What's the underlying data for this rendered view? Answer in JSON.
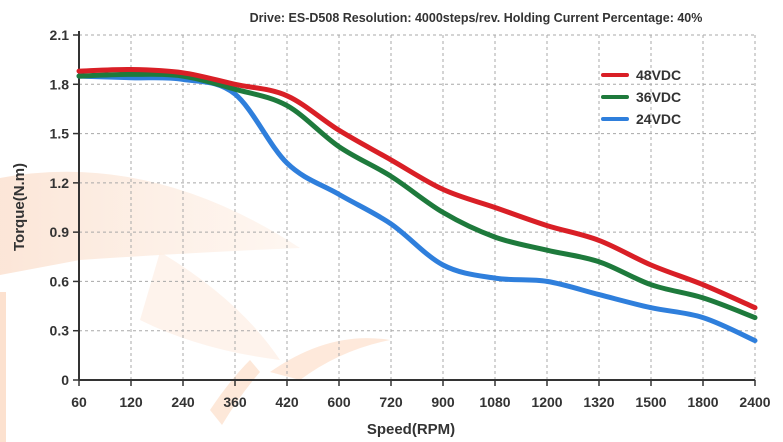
{
  "chart_data": {
    "type": "line",
    "title": "Drive: ES-D508 Resolution: 4000steps/rev. Holding Current Percentage: 40%",
    "xlabel": "Speed(RPM)",
    "ylabel": "Torque(N.m)",
    "x_categories": [
      "60",
      "120",
      "240",
      "360",
      "420",
      "600",
      "720",
      "900",
      "1080",
      "1200",
      "1320",
      "1500",
      "1800",
      "2400"
    ],
    "y_ticks": [
      "0",
      "0.3",
      "0.6",
      "0.9",
      "1.2",
      "1.5",
      "1.8",
      "2.1"
    ],
    "ylim": [
      0,
      2.1
    ],
    "grid": true,
    "legend_position": "top-right",
    "series": [
      {
        "name": "48VDC",
        "color": "#d91f26",
        "values": [
          1.88,
          1.89,
          1.87,
          1.8,
          1.73,
          1.52,
          1.34,
          1.16,
          1.05,
          0.94,
          0.85,
          0.7,
          0.58,
          0.44
        ]
      },
      {
        "name": "36VDC",
        "color": "#1e7a3c",
        "values": [
          1.85,
          1.86,
          1.85,
          1.77,
          1.67,
          1.42,
          1.24,
          1.02,
          0.87,
          0.79,
          0.72,
          0.58,
          0.5,
          0.38
        ]
      },
      {
        "name": "24VDC",
        "color": "#2f7fdc",
        "values": [
          1.85,
          1.84,
          1.83,
          1.74,
          1.32,
          1.13,
          0.95,
          0.7,
          0.62,
          0.6,
          0.52,
          0.44,
          0.38,
          0.24
        ]
      }
    ]
  }
}
